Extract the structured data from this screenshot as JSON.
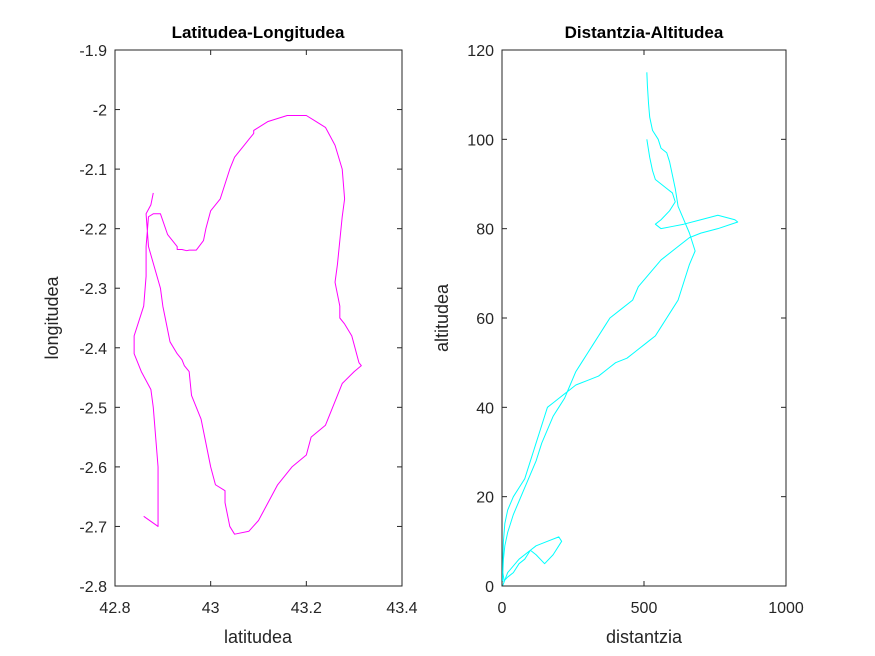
{
  "chart_data": [
    {
      "type": "line",
      "title": "Latitudea-Longitudea",
      "xlabel": "latitudea",
      "ylabel": "longitudea",
      "xlim": [
        42.8,
        43.4
      ],
      "ylim": [
        -2.8,
        -1.9
      ],
      "xticks": [
        42.8,
        43.0,
        43.2,
        43.4
      ],
      "xtick_labels": [
        "42.8",
        "43",
        "43.2",
        "43.4"
      ],
      "yticks": [
        -1.9,
        -2.0,
        -2.1,
        -2.2,
        -2.3,
        -2.4,
        -2.5,
        -2.6,
        -2.7,
        -2.8
      ],
      "ytick_labels": [
        "-1.9",
        "-2",
        "-2.1",
        "-2.2",
        "-2.3",
        "-2.4",
        "-2.5",
        "-2.6",
        "-2.7",
        "-2.8"
      ],
      "grid": false,
      "color": "#ff00ff",
      "series": [
        {
          "x": [
            42.86,
            42.89,
            42.89,
            42.89,
            42.885,
            42.88,
            42.875,
            42.855,
            42.84,
            42.84,
            42.86,
            42.865,
            42.865,
            42.87,
            42.88,
            42.895,
            42.91,
            42.93,
            42.93,
            42.94,
            42.95,
            42.955,
            42.96,
            42.97,
            42.985,
            42.99,
            43.0,
            43.02,
            43.04,
            43.05,
            43.07,
            43.08,
            43.09,
            43.09,
            43.1,
            43.12,
            43.14,
            43.16,
            43.2,
            43.22,
            43.24,
            43.26,
            43.275,
            43.28,
            43.275,
            43.27,
            43.265,
            43.26,
            43.265,
            43.27,
            43.27,
            43.28,
            43.295,
            43.3,
            43.305,
            43.31,
            43.315,
            43.3,
            43.275,
            43.26,
            43.25,
            43.24,
            43.21,
            43.2,
            43.17,
            43.14,
            43.12,
            43.1,
            43.08,
            43.05,
            43.04,
            43.03,
            43.03,
            43.01,
            43.0,
            42.98,
            42.96,
            42.955,
            42.945,
            42.94,
            42.93,
            42.915,
            42.91,
            42.9,
            42.895,
            42.87,
            42.865,
            42.875,
            42.88
          ],
          "y": [
            -2.683,
            -2.7,
            -2.65,
            -2.6,
            -2.55,
            -2.5,
            -2.47,
            -2.44,
            -2.41,
            -2.38,
            -2.33,
            -2.28,
            -2.23,
            -2.18,
            -2.175,
            -2.175,
            -2.21,
            -2.23,
            -2.235,
            -2.235,
            -2.237,
            -2.236,
            -2.236,
            -2.236,
            -2.22,
            -2.2,
            -2.17,
            -2.15,
            -2.1,
            -2.08,
            -2.06,
            -2.05,
            -2.04,
            -2.035,
            -2.03,
            -2.02,
            -2.015,
            -2.01,
            -2.01,
            -2.02,
            -2.03,
            -2.06,
            -2.1,
            -2.15,
            -2.18,
            -2.22,
            -2.26,
            -2.29,
            -2.31,
            -2.33,
            -2.35,
            -2.36,
            -2.38,
            -2.395,
            -2.41,
            -2.425,
            -2.43,
            -2.44,
            -2.46,
            -2.49,
            -2.51,
            -2.53,
            -2.55,
            -2.58,
            -2.6,
            -2.63,
            -2.66,
            -2.69,
            -2.708,
            -2.713,
            -2.7,
            -2.66,
            -2.64,
            -2.63,
            -2.6,
            -2.52,
            -2.48,
            -2.44,
            -2.43,
            -2.42,
            -2.41,
            -2.39,
            -2.37,
            -2.33,
            -2.3,
            -2.23,
            -2.175,
            -2.16,
            -2.14
          ],
          "x_draw_order_note": ""
        }
      ]
    },
    {
      "type": "line",
      "title": "Distantzia-Altitudea",
      "xlabel": "distantzia",
      "ylabel": "altitudea",
      "xlim": [
        0,
        1000
      ],
      "ylim": [
        0,
        120
      ],
      "xticks": [
        0,
        500,
        1000
      ],
      "xtick_labels": [
        "0",
        "500",
        "1000"
      ],
      "yticks": [
        0,
        20,
        40,
        60,
        80,
        100,
        120
      ],
      "ytick_labels": [
        "0",
        "20",
        "40",
        "60",
        "80",
        "100",
        "120"
      ],
      "grid": false,
      "color": "#00ffff",
      "series": [
        {
          "x": [
            510,
            515,
            520,
            530,
            540,
            560,
            580,
            600,
            610,
            590,
            560,
            540,
            560,
            600,
            640,
            700,
            760,
            820,
            830,
            760,
            700,
            660,
            620,
            560,
            520,
            480,
            460,
            420,
            380,
            360,
            340,
            320,
            300,
            280,
            260,
            240,
            220,
            200,
            180,
            160,
            140,
            120,
            100,
            80,
            60,
            40,
            30,
            20,
            10,
            5,
            3,
            8,
            2,
            20,
            60,
            100,
            120,
            160,
            200,
            210,
            180,
            150,
            120,
            100,
            80,
            60,
            40,
            20,
            5
          ],
          "y": [
            100,
            98,
            96,
            93,
            91,
            90,
            89,
            88,
            86,
            84,
            82,
            81,
            80,
            80.5,
            81,
            82,
            83,
            82,
            81.5,
            80,
            79,
            78,
            76,
            73,
            70,
            67,
            64,
            62,
            60,
            58,
            56,
            54,
            52,
            50,
            48,
            45,
            42,
            40,
            38,
            35,
            32,
            28,
            25,
            22,
            19,
            16,
            14,
            12,
            9,
            6,
            3,
            1,
            0,
            3,
            6,
            8,
            9,
            10,
            11,
            10,
            7,
            5,
            7,
            8,
            6,
            5,
            3,
            2,
            1
          ]
        },
        {
          "x": [
            510,
            512,
            516,
            520,
            530,
            550,
            560,
            580,
            590,
            600,
            610,
            620,
            640,
            660,
            680,
            660,
            640,
            620,
            600,
            580,
            560,
            540,
            520,
            500,
            480,
            460,
            440,
            400,
            380,
            360,
            340,
            300,
            260,
            240,
            220,
            200,
            180,
            160,
            150,
            140,
            130,
            120,
            110,
            100,
            90,
            80,
            60,
            40,
            20,
            10,
            5,
            3,
            2
          ],
          "y": [
            115,
            112,
            108,
            105,
            102,
            100,
            98,
            97,
            95,
            92,
            89,
            85,
            82,
            79,
            75,
            72,
            68,
            64,
            62,
            60,
            58,
            56,
            55,
            54,
            53,
            52,
            51,
            50,
            49,
            48,
            47,
            46,
            45,
            44,
            43,
            42,
            41,
            40,
            38,
            36,
            34,
            32,
            30,
            28,
            26,
            24,
            22,
            20,
            17,
            14,
            10,
            5,
            1
          ]
        }
      ]
    }
  ]
}
